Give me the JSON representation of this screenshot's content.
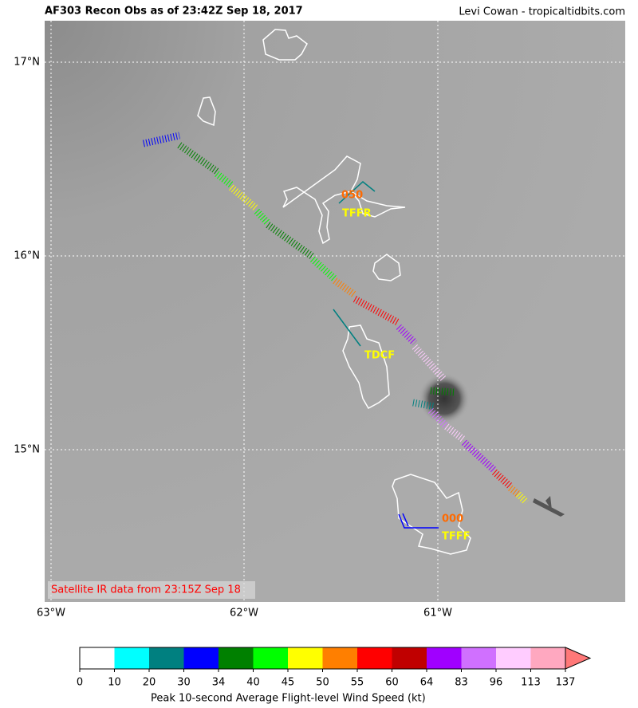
{
  "header": {
    "title": "AF303 Recon Obs as of 23:42Z Sep 18, 2017",
    "credit": "Levi Cowan - tropicaltidbits.com"
  },
  "map": {
    "lat_labels": [
      "17°N",
      "16°N",
      "15°N"
    ],
    "lon_labels": [
      "63°W",
      "62°W",
      "61°W"
    ],
    "stations": [
      {
        "label": "050",
        "color": "#ff6a00"
      },
      {
        "label": "TFFR",
        "color": "#ffff00"
      },
      {
        "label": "TDCF",
        "color": "#ffff00"
      },
      {
        "label": "000",
        "color": "#ff6a00"
      },
      {
        "label": "TFFF",
        "color": "#ffff00"
      }
    ],
    "note": "Satellite IR data from 23:15Z Sep 18"
  },
  "colorbar": {
    "bounds": [
      0,
      10,
      20,
      30,
      34,
      40,
      45,
      50,
      55,
      60,
      64,
      83,
      96,
      113,
      137
    ],
    "colors": [
      "#ffffff",
      "#00ffff",
      "#008080",
      "#0000ff",
      "#008000",
      "#00ff00",
      "#ffff00",
      "#ff7f00",
      "#ff0000",
      "#c00000",
      "#a000ff",
      "#d070ff",
      "#ffccff",
      "#ffa8c0"
    ],
    "extend_color": "#ff7878",
    "label": "Peak 10-second Average Flight-level Wind Speed (kt)"
  }
}
